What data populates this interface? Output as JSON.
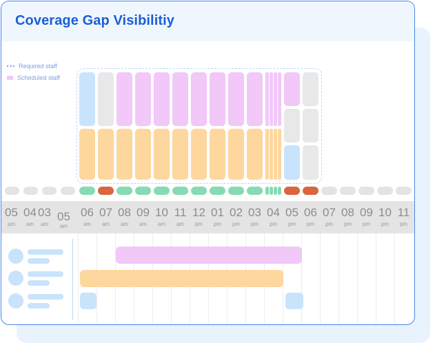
{
  "header": {
    "title": "Coverage Gap Visibilitiy"
  },
  "legend": {
    "required": "Required staff",
    "scheduled": "Scheduled staff"
  },
  "timeline": [
    {
      "num": "05",
      "ap": "am"
    },
    {
      "num": "04",
      "ap": "am"
    },
    {
      "num": "03",
      "ap": "am"
    },
    {
      "num": "05",
      "ap": "am"
    },
    {
      "num": "06",
      "ap": "am"
    },
    {
      "num": "07",
      "ap": "am"
    },
    {
      "num": "08",
      "ap": "am"
    },
    {
      "num": "09",
      "ap": "am"
    },
    {
      "num": "10",
      "ap": "am"
    },
    {
      "num": "11",
      "ap": "am"
    },
    {
      "num": "12",
      "ap": "pm"
    },
    {
      "num": "01",
      "ap": "pm"
    },
    {
      "num": "02",
      "ap": "pm"
    },
    {
      "num": "03",
      "ap": "pm"
    },
    {
      "num": "04",
      "ap": "pm"
    },
    {
      "num": "05",
      "ap": "pm"
    },
    {
      "num": "06",
      "ap": "pm"
    },
    {
      "num": "07",
      "ap": "pm"
    },
    {
      "num": "08",
      "ap": "pm"
    },
    {
      "num": "09",
      "ap": "pm"
    },
    {
      "num": "10",
      "ap": "pm"
    },
    {
      "num": "11",
      "ap": "pm"
    }
  ],
  "colors": {
    "scheduled_shift": "#f1c8f8",
    "required_shift": "#fdd79e",
    "gap_shift": "#c9e3fc",
    "empty_shift": "#e8e8e8",
    "status_ok": "#86dbb4",
    "status_gap": "#d9663f",
    "status_none": "#e4e4e4",
    "accent": "#1a5fd6"
  },
  "status_row": [
    "none",
    "none",
    "none",
    "none",
    "ok",
    "gap",
    "ok",
    "ok",
    "ok",
    "ok",
    "ok",
    "ok",
    "ok",
    "ok",
    "ok",
    "gap",
    "gap",
    "none",
    "none",
    "none",
    "none",
    "none"
  ]
}
